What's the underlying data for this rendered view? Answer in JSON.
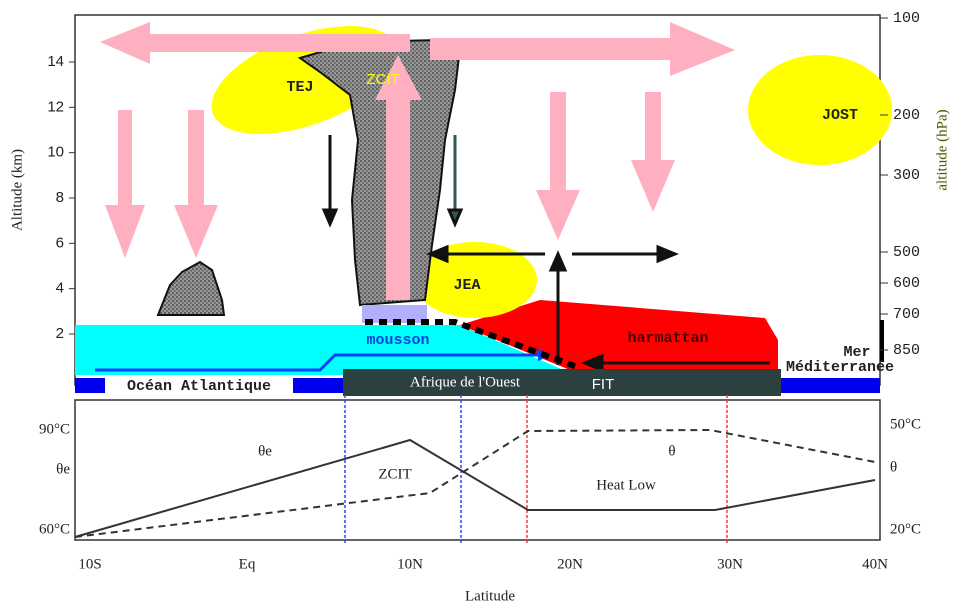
{
  "upper_panel": {
    "y_axis_label": "Altitude (km)",
    "altitude_ticks": [
      2,
      4,
      6,
      8,
      10,
      12,
      14
    ],
    "pressure_axis_label": "altitude (hPa)",
    "pressure_ticks": [
      100,
      200,
      300,
      500,
      600,
      700,
      850
    ],
    "labels": {
      "tej": "TEJ",
      "zcit": "ZCIT",
      "jost": "JOST",
      "jea": "JEA",
      "mousson": "mousson",
      "harmattan": "harmattan",
      "mer": "Mer",
      "mediterranee": "Méditerranée",
      "ocean": "Océan Atlantique",
      "afrique": "Afrique de l'Ouest",
      "fit": "FIT"
    }
  },
  "lower_panel": {
    "left_ticks": [
      "90°C",
      "θe",
      "60°C"
    ],
    "right_ticks": [
      "50°C",
      "θ",
      "20°C"
    ],
    "curve_labels": {
      "theta_e": "θe",
      "theta": "θ"
    },
    "zone_labels": {
      "zcit": "ZCIT",
      "heat_low": "Heat Low"
    },
    "x_ticks": [
      "10S",
      "Eq",
      "10N",
      "20N",
      "30N",
      "40N"
    ],
    "x_axis_label": "Latitude"
  }
}
